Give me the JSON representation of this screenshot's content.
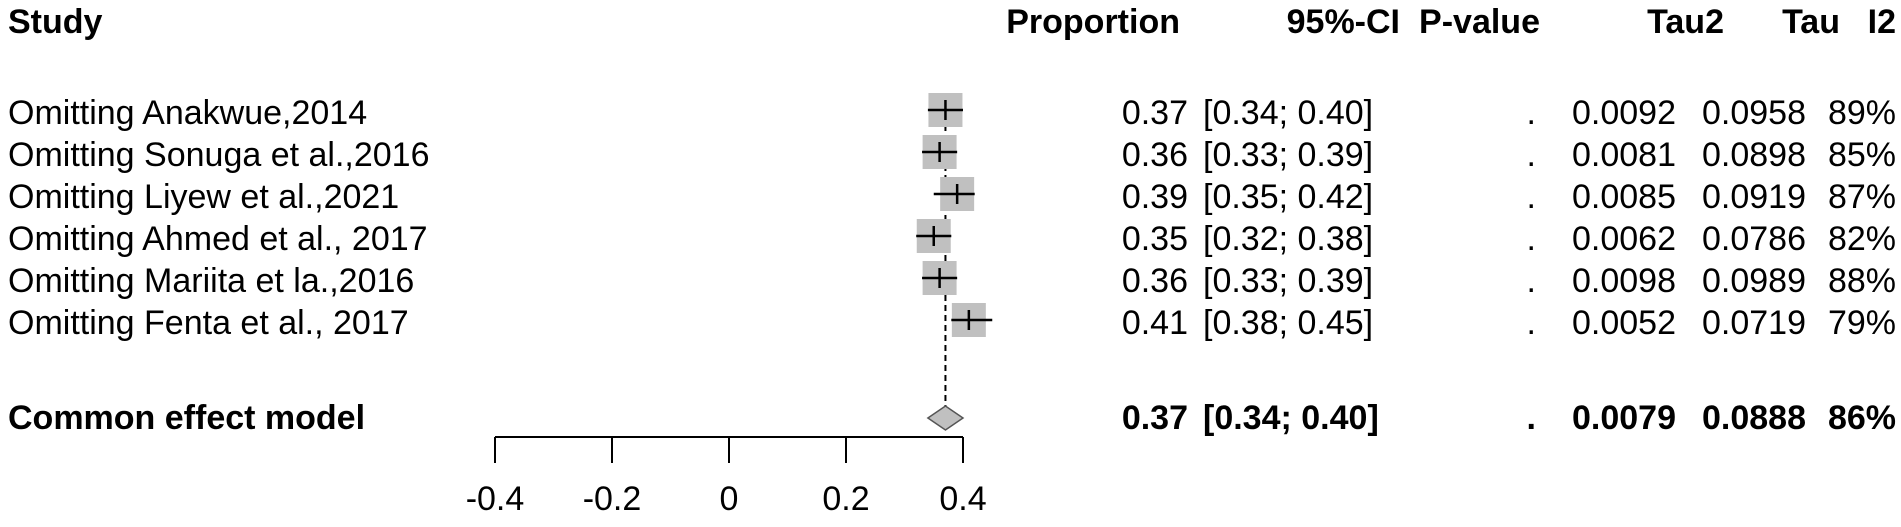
{
  "header": {
    "study": "Study",
    "proportion": "Proportion",
    "ci": "95%-CI",
    "pvalue": "P-value",
    "tau2": "Tau2",
    "tau": "Tau",
    "i2": "I2"
  },
  "rows": [
    {
      "study": "Omitting Anakwue,2014",
      "proportion": "0.37",
      "ci": "[0.34; 0.40]",
      "pvalue": ".",
      "tau2": "0.0092",
      "tau": "0.0958",
      "i2": "89%"
    },
    {
      "study": "Omitting Sonuga et al.,2016",
      "proportion": "0.36",
      "ci": "[0.33; 0.39]",
      "pvalue": ".",
      "tau2": "0.0081",
      "tau": "0.0898",
      "i2": "85%"
    },
    {
      "study": "Omitting Liyew et al.,2021",
      "proportion": "0.39",
      "ci": "[0.35; 0.42]",
      "pvalue": ".",
      "tau2": "0.0085",
      "tau": "0.0919",
      "i2": "87%"
    },
    {
      "study": "Omitting Ahmed et al., 2017",
      "proportion": "0.35",
      "ci": "[0.32; 0.38]",
      "pvalue": ".",
      "tau2": "0.0062",
      "tau": "0.0786",
      "i2": "82%"
    },
    {
      "study": "Omitting Mariita et la.,2016",
      "proportion": "0.36",
      "ci": "[0.33; 0.39]",
      "pvalue": ".",
      "tau2": "0.0098",
      "tau": "0.0989",
      "i2": "88%"
    },
    {
      "study": "Omitting Fenta et al., 2017",
      "proportion": "0.41",
      "ci": "[0.38; 0.45]",
      "pvalue": ".",
      "tau2": "0.0052",
      "tau": "0.0719",
      "i2": "79%"
    }
  ],
  "summary": {
    "study": "Common effect model",
    "proportion": "0.37",
    "ci": "[0.34; 0.40]",
    "pvalue": ".",
    "tau2": "0.0079",
    "tau": "0.0888",
    "i2": "86%"
  },
  "chart_data": {
    "type": "forest",
    "xlim": [
      -0.4,
      0.4
    ],
    "xticks": [
      "-0.4",
      "-0.2",
      "0",
      "0.2",
      "0.4"
    ],
    "xtick_values": [
      -0.4,
      -0.2,
      0,
      0.2,
      0.4
    ],
    "estimates": [
      {
        "est": 0.37,
        "lo": 0.34,
        "hi": 0.4
      },
      {
        "est": 0.36,
        "lo": 0.33,
        "hi": 0.39
      },
      {
        "est": 0.39,
        "lo": 0.35,
        "hi": 0.42
      },
      {
        "est": 0.35,
        "lo": 0.32,
        "hi": 0.38
      },
      {
        "est": 0.36,
        "lo": 0.33,
        "hi": 0.39
      },
      {
        "est": 0.41,
        "lo": 0.38,
        "hi": 0.45
      }
    ],
    "pooled": {
      "est": 0.37,
      "lo": 0.34,
      "hi": 0.4
    },
    "colors": {
      "box": "#c0c0c0",
      "diamond": "#c0c0c0",
      "line": "#000000"
    }
  }
}
